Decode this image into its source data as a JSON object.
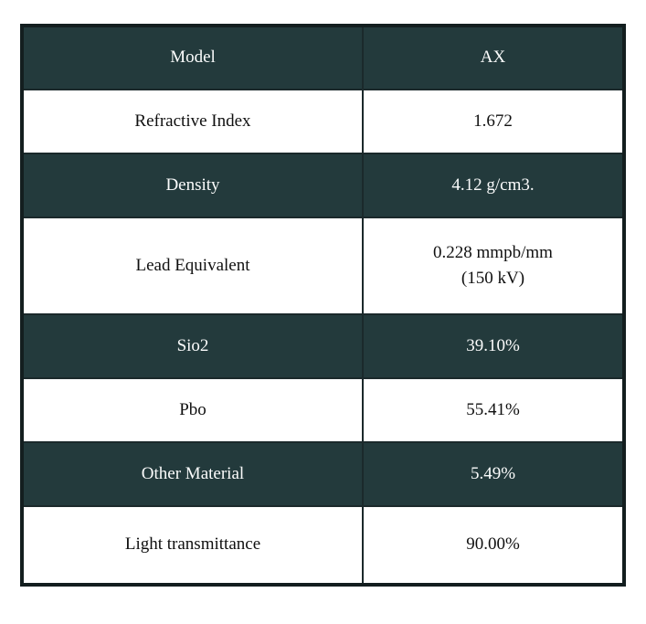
{
  "page": {
    "background": "#ffffff"
  },
  "table": {
    "colors": {
      "dark_row_bg": "#233a3c",
      "dark_row_text": "#fbfcfc",
      "light_row_bg": "#ffffff",
      "light_row_text": "#101010",
      "grid_border": "#1b292b",
      "outer_border": "#131e1f"
    },
    "rows": [
      {
        "label": "Model",
        "value": "AX",
        "variant": "dark"
      },
      {
        "label": "Refractive Index",
        "value": "1.672",
        "variant": "light"
      },
      {
        "label": "Density",
        "value": "4.12 g/cm3.",
        "variant": "dark"
      },
      {
        "label": "Lead Equivalent",
        "value": "0.228 mmpb/mm\n(150 kV)",
        "variant": "light"
      },
      {
        "label": "Sio2",
        "value": "39.10%",
        "variant": "dark"
      },
      {
        "label": "Pbo",
        "value": "55.41%",
        "variant": "light"
      },
      {
        "label": "Other Material",
        "value": "5.49%",
        "variant": "dark"
      },
      {
        "label": "Light transmittance",
        "value": "90.00%",
        "variant": "light"
      }
    ]
  },
  "chart_data": {
    "type": "table",
    "columns": [
      "Model",
      "AX"
    ],
    "rows": [
      [
        "Refractive Index",
        "1.672"
      ],
      [
        "Density",
        "4.12 g/cm3."
      ],
      [
        "Lead Equivalent",
        "0.228 mmpb/mm (150 kV)"
      ],
      [
        "Sio2",
        "39.10%"
      ],
      [
        "Pbo",
        "55.41%"
      ],
      [
        "Other Material",
        "5.49%"
      ],
      [
        "Light transmittance",
        "90.00%"
      ]
    ]
  }
}
